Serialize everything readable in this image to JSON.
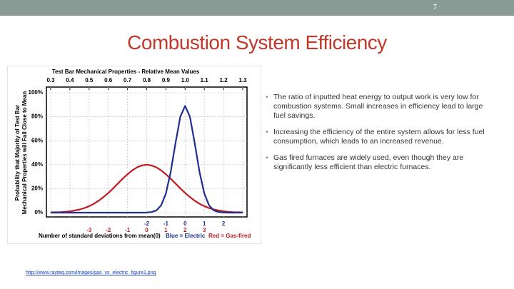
{
  "slide_number": "7",
  "title": "Combustion System Efficiency",
  "bullets": [
    "The ratio of inputted heat energy to output work is very low for combustion systems. Small increases in efficiency lead to large fuel savings.",
    "Increasing the efficiency of the entire system allows for less fuel consumption, which leads to an increased revenue.",
    "Gas fired furnaces are widely used, even though they are significantly less efficient than electric furnaces."
  ],
  "source_url": "http://www.rayteq.com/images/gas_vs_electric_figure1.png",
  "chart_data": {
    "type": "line",
    "title": "Test Bar Mechanical Properties - Relative Mean Values",
    "y_label_lines": [
      "Probability that Majority of Test Bar",
      "Mechanical Properties will Fall Close to Mean"
    ],
    "x_label": "Number of standard deviations from mean(0)",
    "x": [
      0.3,
      0.325,
      0.35,
      0.375,
      0.4,
      0.425,
      0.45,
      0.475,
      0.5,
      0.525,
      0.55,
      0.575,
      0.6,
      0.625,
      0.65,
      0.675,
      0.7,
      0.725,
      0.75,
      0.775,
      0.8,
      0.825,
      0.85,
      0.875,
      0.9,
      0.925,
      0.95,
      0.975,
      1.0,
      1.025,
      1.05,
      1.075,
      1.1,
      1.125,
      1.15,
      1.175,
      1.2,
      1.225,
      1.25,
      1.275,
      1.3
    ],
    "series": [
      {
        "name": "Blue = Electric",
        "color": "#1f2f8f",
        "values": [
          0,
          0,
          0,
          0,
          0,
          0,
          0,
          0,
          0,
          0,
          0,
          0,
          0,
          0,
          0,
          0,
          0,
          0,
          0,
          0,
          0.1,
          0.5,
          1.8,
          6,
          16,
          34,
          58,
          80,
          89,
          80,
          58,
          34,
          16,
          6,
          1.8,
          0.5,
          0.1,
          0,
          0,
          0,
          0
        ]
      },
      {
        "name": "Red = Gas-fired",
        "color": "#c0191f",
        "values": [
          0.2,
          0.3,
          0.4,
          0.7,
          1.1,
          1.8,
          2.6,
          3.8,
          5.4,
          7.4,
          10,
          13,
          16.4,
          20.2,
          24.3,
          28.3,
          32,
          35.3,
          37.8,
          39.4,
          40,
          39.4,
          37.8,
          35.3,
          32,
          28.3,
          24.3,
          20.2,
          16.4,
          13,
          10,
          7.4,
          5.4,
          3.8,
          2.6,
          1.8,
          1.1,
          0.7,
          0.4,
          0.3,
          0.2
        ]
      }
    ],
    "xlim": [
      0.3,
      1.3
    ],
    "xticks": [
      0.3,
      0.4,
      0.5,
      0.6,
      0.7,
      0.8,
      0.9,
      {
        "value": 1,
        "label": "1.0"
      },
      1.1,
      1.2,
      1.3
    ],
    "ylim": [
      0,
      100
    ],
    "yticks": [
      {
        "value": 0,
        "label": "0%"
      },
      {
        "value": 20,
        "label": "20%"
      },
      {
        "value": 40,
        "label": "40%"
      },
      {
        "value": 60,
        "label": "60%"
      },
      {
        "value": 80,
        "label": "80%"
      },
      {
        "value": 100,
        "label": "100%"
      }
    ],
    "sigma_ticks": [
      [
        {
          "value": 0.8,
          "label": "-2"
        },
        {
          "value": 0.9,
          "label": "-1"
        },
        {
          "value": 1,
          "label": "0"
        },
        {
          "value": 1.1,
          "label": "1"
        },
        {
          "value": 1.2,
          "label": "2"
        }
      ],
      [
        {
          "value": 0.5,
          "label": "-3"
        },
        {
          "value": 0.6,
          "label": "-2"
        },
        {
          "value": 0.7,
          "label": "-1"
        },
        {
          "value": 0.8,
          "label": "0"
        },
        {
          "value": 0.9,
          "label": "1"
        },
        {
          "value": 1,
          "label": "2"
        },
        {
          "value": 1.1,
          "label": "3"
        }
      ]
    ],
    "grid": true
  }
}
